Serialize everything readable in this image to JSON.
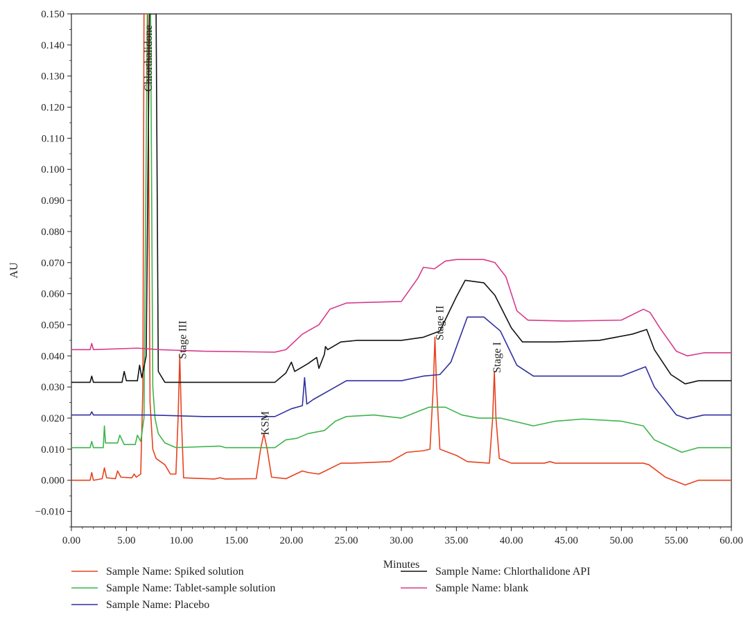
{
  "chart_data": {
    "type": "line",
    "title": "",
    "xlabel": "Minutes",
    "ylabel": "AU",
    "xlim": [
      0,
      60
    ],
    "ylim": [
      -0.015,
      0.15
    ],
    "grid": false,
    "legend_position": "bottom",
    "x_ticks": [
      "0.00",
      "5.00",
      "10.00",
      "15.00",
      "20.00",
      "25.00",
      "30.00",
      "35.00",
      "40.00",
      "45.00",
      "50.00",
      "55.00",
      "60.00"
    ],
    "y_ticks": [
      "0.150",
      "0.140",
      "0.130",
      "0.120",
      "0.110",
      "0.100",
      "0.090",
      "0.080",
      "0.070",
      "0.060",
      "0.050",
      "0.040",
      "0.030",
      "0.020",
      "0.010",
      "0.000",
      "−0.010"
    ],
    "series": [
      {
        "name": "Sample Name: Spiked solution",
        "color": "#e8401c",
        "points": [
          [
            0,
            0
          ],
          [
            1.7,
            0
          ],
          [
            1.85,
            0.0025
          ],
          [
            2.0,
            0
          ],
          [
            2.8,
            0.0005
          ],
          [
            3.0,
            0.004
          ],
          [
            3.2,
            0.0008
          ],
          [
            4.0,
            0.0005
          ],
          [
            4.2,
            0.003
          ],
          [
            4.5,
            0.001
          ],
          [
            5.5,
            0.0008
          ],
          [
            5.7,
            0.002
          ],
          [
            5.9,
            0.001
          ],
          [
            6.3,
            0.002
          ],
          [
            6.5,
            0.03
          ],
          [
            6.6,
            0.15
          ],
          [
            6.95,
            0.15
          ],
          [
            7.15,
            0.025
          ],
          [
            7.4,
            0.01
          ],
          [
            7.7,
            0.007
          ],
          [
            8.5,
            0.005
          ],
          [
            9.0,
            0.002
          ],
          [
            9.5,
            0.002
          ],
          [
            9.7,
            0.02
          ],
          [
            9.85,
            0.04
          ],
          [
            10.0,
            0.02
          ],
          [
            10.2,
            0.0008
          ],
          [
            13.0,
            0.0004
          ],
          [
            13.5,
            0.0008
          ],
          [
            14.0,
            0.0004
          ],
          [
            16.8,
            0.0005
          ],
          [
            17.2,
            0.01
          ],
          [
            17.5,
            0.015
          ],
          [
            17.8,
            0.01
          ],
          [
            18.2,
            0.001
          ],
          [
            19.5,
            0.0005
          ],
          [
            21.0,
            0.003
          ],
          [
            21.5,
            0.0025
          ],
          [
            22.5,
            0.002
          ],
          [
            24.5,
            0.0055
          ],
          [
            25.5,
            0.0055
          ],
          [
            29.0,
            0.006
          ],
          [
            30.5,
            0.009
          ],
          [
            32.0,
            0.0095
          ],
          [
            32.6,
            0.01
          ],
          [
            32.9,
            0.03
          ],
          [
            33.05,
            0.046
          ],
          [
            33.2,
            0.03
          ],
          [
            33.5,
            0.01
          ],
          [
            35.0,
            0.008
          ],
          [
            36.0,
            0.006
          ],
          [
            38.0,
            0.0055
          ],
          [
            38.3,
            0.02
          ],
          [
            38.45,
            0.035
          ],
          [
            38.6,
            0.02
          ],
          [
            38.9,
            0.007
          ],
          [
            40.0,
            0.0055
          ],
          [
            43.0,
            0.0055
          ],
          [
            43.5,
            0.006
          ],
          [
            44.0,
            0.0055
          ],
          [
            52.0,
            0.0055
          ],
          [
            52.5,
            0.005
          ],
          [
            54.0,
            0.001
          ],
          [
            55.8,
            -0.0015
          ],
          [
            57.0,
            0
          ],
          [
            60,
            0
          ]
        ]
      },
      {
        "name": "Sample Name: Tablet-sample solution",
        "color": "#3cb44b",
        "points": [
          [
            0,
            0.0105
          ],
          [
            1.7,
            0.0105
          ],
          [
            1.85,
            0.0125
          ],
          [
            2.0,
            0.0105
          ],
          [
            2.9,
            0.0105
          ],
          [
            3.0,
            0.0175
          ],
          [
            3.1,
            0.012
          ],
          [
            4.2,
            0.012
          ],
          [
            4.4,
            0.0145
          ],
          [
            4.8,
            0.0115
          ],
          [
            5.8,
            0.0115
          ],
          [
            6.0,
            0.0145
          ],
          [
            6.3,
            0.0125
          ],
          [
            6.6,
            0.02
          ],
          [
            6.9,
            0.15
          ],
          [
            7.2,
            0.15
          ],
          [
            7.4,
            0.03
          ],
          [
            7.6,
            0.02
          ],
          [
            7.9,
            0.015
          ],
          [
            8.5,
            0.012
          ],
          [
            9.5,
            0.0105
          ],
          [
            13.5,
            0.011
          ],
          [
            14.0,
            0.0105
          ],
          [
            18.5,
            0.0105
          ],
          [
            19.5,
            0.013
          ],
          [
            20.5,
            0.0135
          ],
          [
            21.5,
            0.015
          ],
          [
            23.0,
            0.016
          ],
          [
            24.0,
            0.019
          ],
          [
            25.0,
            0.0205
          ],
          [
            27.5,
            0.021
          ],
          [
            30.0,
            0.02
          ],
          [
            32.5,
            0.0235
          ],
          [
            34.0,
            0.0235
          ],
          [
            35.5,
            0.021
          ],
          [
            37.0,
            0.02
          ],
          [
            39.0,
            0.02
          ],
          [
            42.0,
            0.0175
          ],
          [
            44.0,
            0.019
          ],
          [
            46.5,
            0.0197
          ],
          [
            50.0,
            0.019
          ],
          [
            52.0,
            0.0175
          ],
          [
            53.0,
            0.013
          ],
          [
            55.5,
            0.009
          ],
          [
            57.0,
            0.0105
          ],
          [
            60,
            0.0105
          ]
        ]
      },
      {
        "name": "Sample Name: Placebo",
        "color": "#2e2ea0",
        "points": [
          [
            0,
            0.021
          ],
          [
            1.7,
            0.021
          ],
          [
            1.85,
            0.022
          ],
          [
            2.0,
            0.021
          ],
          [
            6.0,
            0.021
          ],
          [
            7.0,
            0.021
          ],
          [
            12.0,
            0.0205
          ],
          [
            18.5,
            0.0205
          ],
          [
            20.0,
            0.023
          ],
          [
            21.0,
            0.024
          ],
          [
            21.2,
            0.033
          ],
          [
            21.4,
            0.0245
          ],
          [
            22.0,
            0.026
          ],
          [
            23.5,
            0.029
          ],
          [
            25.0,
            0.032
          ],
          [
            30.0,
            0.032
          ],
          [
            32.0,
            0.0335
          ],
          [
            33.5,
            0.034
          ],
          [
            34.5,
            0.038
          ],
          [
            36.0,
            0.0525
          ],
          [
            37.5,
            0.0525
          ],
          [
            39.0,
            0.048
          ],
          [
            40.5,
            0.037
          ],
          [
            42.0,
            0.0335
          ],
          [
            45.0,
            0.0335
          ],
          [
            50.0,
            0.0335
          ],
          [
            52.2,
            0.0365
          ],
          [
            53.0,
            0.03
          ],
          [
            55.0,
            0.021
          ],
          [
            56.0,
            0.0198
          ],
          [
            57.5,
            0.021
          ],
          [
            60,
            0.021
          ]
        ]
      },
      {
        "name": "Sample Name: Chlorthalidone API",
        "color": "#111111",
        "points": [
          [
            0,
            0.0315
          ],
          [
            1.7,
            0.0315
          ],
          [
            1.85,
            0.0335
          ],
          [
            2.0,
            0.0315
          ],
          [
            4.6,
            0.0315
          ],
          [
            4.8,
            0.035
          ],
          [
            5.0,
            0.032
          ],
          [
            6.0,
            0.032
          ],
          [
            6.2,
            0.037
          ],
          [
            6.4,
            0.033
          ],
          [
            6.8,
            0.04
          ],
          [
            7.1,
            0.15
          ],
          [
            7.7,
            0.15
          ],
          [
            7.9,
            0.035
          ],
          [
            8.5,
            0.0315
          ],
          [
            18.5,
            0.0315
          ],
          [
            19.5,
            0.0345
          ],
          [
            20.0,
            0.038
          ],
          [
            20.3,
            0.035
          ],
          [
            21.5,
            0.0375
          ],
          [
            22.3,
            0.0395
          ],
          [
            22.5,
            0.036
          ],
          [
            23.0,
            0.0405
          ],
          [
            23.1,
            0.043
          ],
          [
            23.3,
            0.042
          ],
          [
            24.5,
            0.0445
          ],
          [
            26.0,
            0.045
          ],
          [
            30.0,
            0.045
          ],
          [
            32.0,
            0.046
          ],
          [
            33.5,
            0.048
          ],
          [
            35.0,
            0.059
          ],
          [
            35.8,
            0.0643
          ],
          [
            37.5,
            0.0635
          ],
          [
            38.5,
            0.0595
          ],
          [
            40.0,
            0.049
          ],
          [
            41.0,
            0.0445
          ],
          [
            44.0,
            0.0445
          ],
          [
            48.0,
            0.045
          ],
          [
            51.0,
            0.047
          ],
          [
            52.3,
            0.0485
          ],
          [
            53.0,
            0.042
          ],
          [
            54.5,
            0.034
          ],
          [
            55.8,
            0.031
          ],
          [
            57.0,
            0.032
          ],
          [
            60,
            0.032
          ]
        ]
      },
      {
        "name": "Sample Name: blank",
        "color": "#d63a8a",
        "points": [
          [
            0,
            0.042
          ],
          [
            1.7,
            0.042
          ],
          [
            1.85,
            0.044
          ],
          [
            2.0,
            0.042
          ],
          [
            6.0,
            0.0425
          ],
          [
            8.0,
            0.042
          ],
          [
            12.0,
            0.0415
          ],
          [
            18.5,
            0.0412
          ],
          [
            19.5,
            0.042
          ],
          [
            21.0,
            0.047
          ],
          [
            22.5,
            0.05
          ],
          [
            23.5,
            0.055
          ],
          [
            25.0,
            0.057
          ],
          [
            30.0,
            0.0575
          ],
          [
            31.5,
            0.065
          ],
          [
            32.0,
            0.0685
          ],
          [
            33.0,
            0.068
          ],
          [
            34.0,
            0.0705
          ],
          [
            35.0,
            0.071
          ],
          [
            37.5,
            0.071
          ],
          [
            38.5,
            0.07
          ],
          [
            39.5,
            0.0655
          ],
          [
            40.5,
            0.0545
          ],
          [
            41.5,
            0.0515
          ],
          [
            45.0,
            0.0512
          ],
          [
            50.0,
            0.0515
          ],
          [
            52.0,
            0.055
          ],
          [
            52.6,
            0.054
          ],
          [
            53.5,
            0.049
          ],
          [
            55.0,
            0.0415
          ],
          [
            56.0,
            0.04
          ],
          [
            57.5,
            0.041
          ],
          [
            60,
            0.041
          ]
        ]
      }
    ],
    "annotations": [
      {
        "text": "Chlorthalidone",
        "x": 7.0,
        "y": 0.125
      },
      {
        "text": "Stage III",
        "x": 10.1,
        "y": 0.039
      },
      {
        "text": "KSM",
        "x": 17.6,
        "y": 0.0145
      },
      {
        "text": "Stage II",
        "x": 33.5,
        "y": 0.045
      },
      {
        "text": "Stage I",
        "x": 38.7,
        "y": 0.0345
      }
    ]
  }
}
